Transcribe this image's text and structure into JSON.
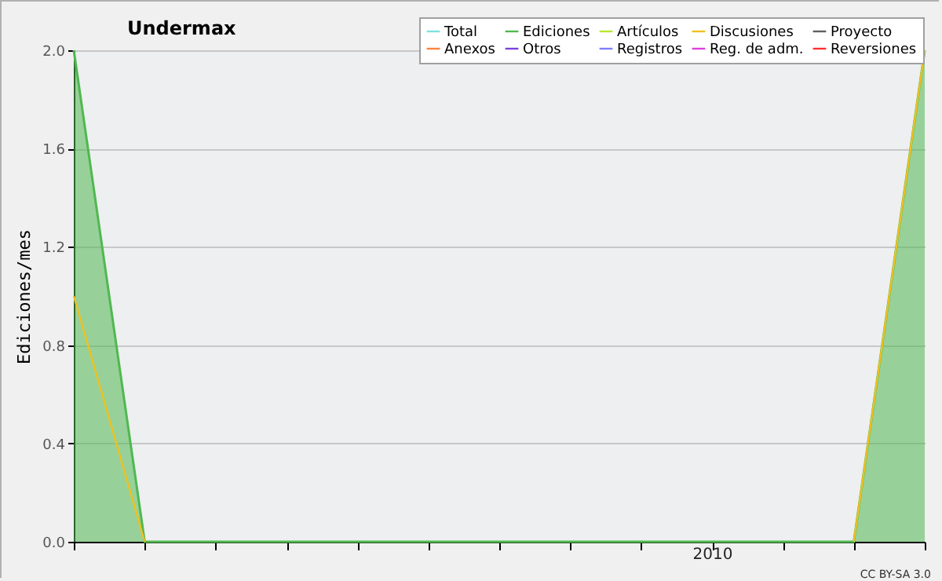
{
  "chart_data": {
    "type": "line",
    "title": "Undermax",
    "ylabel": "Ediciones/mes",
    "annotations": [
      "2010",
      "CC BY-SA 3.0"
    ],
    "categories": [
      null,
      null,
      null,
      null,
      null,
      null,
      null,
      null,
      null,
      null,
      null,
      null,
      null
    ],
    "series": [
      {
        "name": "Total",
        "color": "#80e0e0",
        "values": [
          null,
          null,
          null,
          null,
          null,
          null,
          null,
          null,
          null,
          null,
          null,
          null,
          null
        ]
      },
      {
        "name": "Ediciones",
        "color": "#50b850",
        "type": "area",
        "values": [
          2,
          0,
          0,
          0,
          0,
          0,
          0,
          0,
          0,
          0,
          0,
          0,
          2
        ]
      },
      {
        "name": "Artículos",
        "color": "#b8e830",
        "values": [
          null,
          null,
          null,
          null,
          null,
          null,
          null,
          null,
          null,
          null,
          null,
          null,
          null
        ]
      },
      {
        "name": "Discusiones",
        "color": "#f0c020",
        "values": [
          1,
          0,
          null,
          null,
          null,
          null,
          null,
          null,
          null,
          null,
          null,
          0,
          2
        ]
      },
      {
        "name": "Proyecto",
        "color": "#606060",
        "values": [
          null,
          null,
          null,
          null,
          null,
          null,
          null,
          null,
          null,
          null,
          null,
          null,
          null
        ]
      },
      {
        "name": "Anexos",
        "color": "#ff8040",
        "values": [
          null,
          null,
          null,
          null,
          null,
          null,
          null,
          null,
          null,
          null,
          null,
          null,
          null
        ]
      },
      {
        "name": "Otros",
        "color": "#8040e0",
        "values": [
          null,
          null,
          null,
          null,
          null,
          null,
          null,
          null,
          null,
          null,
          null,
          null,
          null
        ]
      },
      {
        "name": "Registros",
        "color": "#8080ff",
        "values": [
          null,
          null,
          null,
          null,
          null,
          null,
          null,
          null,
          null,
          null,
          null,
          null,
          null
        ]
      },
      {
        "name": "Reg. de adm.",
        "color": "#e040e0",
        "values": [
          null,
          null,
          null,
          null,
          null,
          null,
          null,
          null,
          null,
          null,
          null,
          null,
          null
        ]
      },
      {
        "name": "Reversiones",
        "color": "#ff3030",
        "values": [
          null,
          null,
          null,
          null,
          null,
          null,
          null,
          null,
          null,
          null,
          null,
          null,
          null
        ]
      }
    ],
    "ylim": [
      0,
      2
    ],
    "yticks": [
      {
        "value": 0,
        "label": "0.0"
      },
      {
        "value": 0.4,
        "label": "0.4"
      },
      {
        "value": 0.8,
        "label": "0.8"
      },
      {
        "value": 1.2,
        "label": "1.2"
      },
      {
        "value": 1.6,
        "label": "1.6"
      },
      {
        "value": 2,
        "label": "2.0"
      }
    ],
    "grid": "y",
    "legend": "top right"
  }
}
